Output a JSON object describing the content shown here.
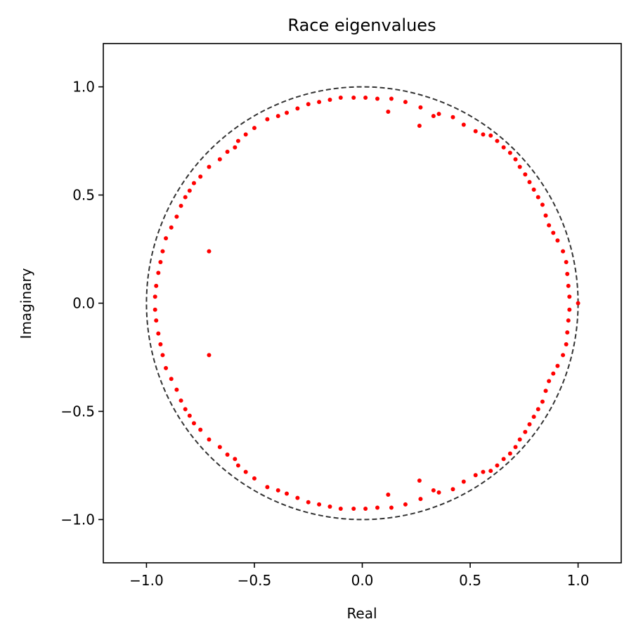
{
  "chart_data": {
    "type": "scatter",
    "title": "Race eigenvalues",
    "xlabel": "Real",
    "ylabel": "Imaginary",
    "xlim": [
      -1.2,
      1.2
    ],
    "ylim": [
      -1.2,
      1.2
    ],
    "xticks": [
      {
        "value": -1.0,
        "label": "−1.0"
      },
      {
        "value": -0.5,
        "label": "−0.5"
      },
      {
        "value": 0.0,
        "label": "0.0"
      },
      {
        "value": 0.5,
        "label": "0.5"
      },
      {
        "value": 1.0,
        "label": "1.0"
      }
    ],
    "yticks": [
      {
        "value": -1.0,
        "label": "−1.0"
      },
      {
        "value": -0.5,
        "label": "−0.5"
      },
      {
        "value": 0.0,
        "label": "0.0"
      },
      {
        "value": 0.5,
        "label": "0.5"
      },
      {
        "value": 1.0,
        "label": "1.0"
      }
    ],
    "grid": false,
    "legend": false,
    "reference_circle": {
      "radius": 1.0,
      "style": "dashed",
      "color": "#333333"
    },
    "point_color": "#ff0000",
    "upper_points": [
      [
        1.0,
        0.0
      ],
      [
        0.96,
        0.03
      ],
      [
        0.955,
        0.08
      ],
      [
        0.95,
        0.135
      ],
      [
        0.945,
        0.19
      ],
      [
        0.93,
        0.24
      ],
      [
        0.905,
        0.29
      ],
      [
        0.885,
        0.325
      ],
      [
        0.865,
        0.36
      ],
      [
        0.85,
        0.405
      ],
      [
        0.835,
        0.455
      ],
      [
        0.815,
        0.49
      ],
      [
        0.795,
        0.525
      ],
      [
        0.775,
        0.56
      ],
      [
        0.755,
        0.595
      ],
      [
        0.73,
        0.63
      ],
      [
        0.71,
        0.665
      ],
      [
        0.685,
        0.695
      ],
      [
        0.655,
        0.72
      ],
      [
        0.625,
        0.75
      ],
      [
        0.595,
        0.775
      ],
      [
        0.56,
        0.78
      ],
      [
        0.525,
        0.795
      ],
      [
        0.47,
        0.825
      ],
      [
        0.42,
        0.86
      ],
      [
        0.355,
        0.875
      ],
      [
        0.33,
        0.865
      ],
      [
        0.27,
        0.905
      ],
      [
        0.265,
        0.82
      ],
      [
        0.2,
        0.93
      ],
      [
        0.135,
        0.945
      ],
      [
        0.12,
        0.885
      ],
      [
        0.07,
        0.945
      ],
      [
        0.015,
        0.95
      ],
      [
        -0.04,
        0.95
      ],
      [
        -0.1,
        0.95
      ],
      [
        -0.15,
        0.94
      ],
      [
        -0.2,
        0.93
      ],
      [
        -0.25,
        0.92
      ],
      [
        -0.3,
        0.9
      ],
      [
        -0.35,
        0.88
      ],
      [
        -0.39,
        0.865
      ],
      [
        -0.44,
        0.85
      ],
      [
        -0.5,
        0.81
      ],
      [
        -0.54,
        0.78
      ],
      [
        -0.575,
        0.75
      ],
      [
        -0.59,
        0.72
      ],
      [
        -0.625,
        0.7
      ],
      [
        -0.66,
        0.665
      ],
      [
        -0.71,
        0.63
      ],
      [
        -0.75,
        0.585
      ],
      [
        -0.78,
        0.555
      ],
      [
        -0.8,
        0.52
      ],
      [
        -0.82,
        0.49
      ],
      [
        -0.84,
        0.45
      ],
      [
        -0.86,
        0.4
      ],
      [
        -0.885,
        0.35
      ],
      [
        -0.91,
        0.3
      ],
      [
        -0.925,
        0.24
      ],
      [
        -0.935,
        0.19
      ],
      [
        -0.945,
        0.14
      ],
      [
        -0.955,
        0.08
      ],
      [
        -0.96,
        0.03
      ],
      [
        -0.71,
        0.24
      ]
    ]
  }
}
